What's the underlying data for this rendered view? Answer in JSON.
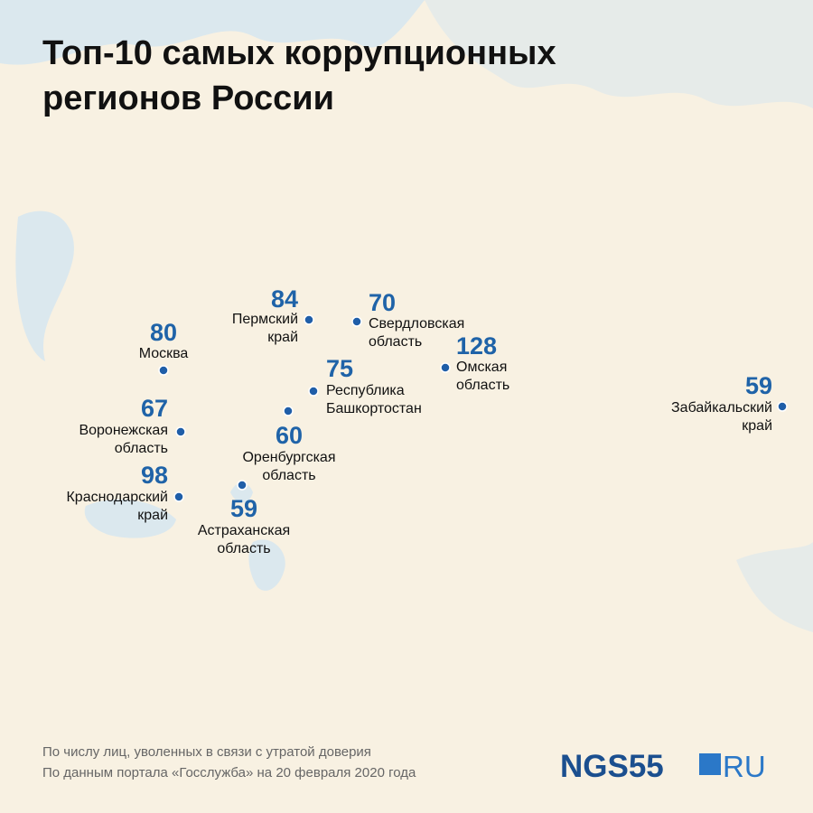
{
  "header": {
    "title": [
      "Топ-10 самых коррупционных",
      "регионов России"
    ]
  },
  "regions": [
    {
      "value": "84",
      "label": [
        "Пермский",
        "край"
      ]
    },
    {
      "value": "70",
      "label": [
        "Свердловская",
        "область"
      ]
    },
    {
      "value": "80",
      "label": [
        "Москва"
      ]
    },
    {
      "value": "128",
      "label": [
        "Омская",
        "область"
      ]
    },
    {
      "value": "75",
      "label": [
        "Республика",
        "Башкортостан"
      ]
    },
    {
      "value": "67",
      "label": [
        "Воронежская",
        "область"
      ]
    },
    {
      "value": "60",
      "label": [
        "Оренбургская",
        "область"
      ]
    },
    {
      "value": "98",
      "label": [
        "Краснодарский",
        "край"
      ]
    },
    {
      "value": "59",
      "label": [
        "Астраханская",
        "область"
      ]
    },
    {
      "value": "59",
      "label": [
        "Забайкальский",
        "край"
      ]
    }
  ],
  "footer": {
    "notes": [
      "По числу лиц, уволенных в связи с утратой доверия",
      "По данным портала «Госслужба» на 20 февраля 2020 года"
    ],
    "logo": {
      "main": "NGS55",
      "suffix": "RU"
    }
  }
}
